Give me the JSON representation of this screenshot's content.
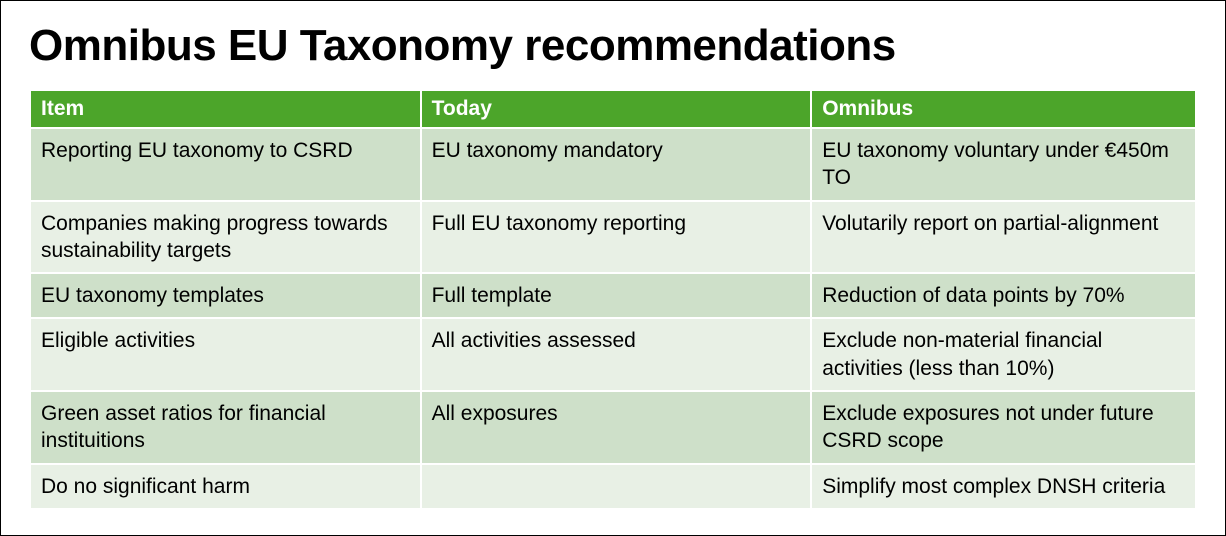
{
  "title": "Omnibus EU Taxonomy recommendations",
  "table": {
    "type": "table",
    "header_bg": "#4ca52a",
    "header_fg": "#ffffff",
    "row_odd_bg": "#cee0c9",
    "row_even_bg": "#e8f0e5",
    "text_color": "#000000",
    "font_size": 21,
    "columns": [
      {
        "key": "item",
        "label": "Item",
        "width": "33.5%"
      },
      {
        "key": "today",
        "label": "Today",
        "width": "33.5%"
      },
      {
        "key": "omnibus",
        "label": "Omnibus",
        "width": "33%"
      }
    ],
    "rows": [
      {
        "item": "Reporting EU taxonomy to CSRD",
        "today": "EU taxonomy mandatory",
        "omnibus": "EU taxonomy voluntary under €450m TO"
      },
      {
        "item": "Companies making progress towards sustainability targets",
        "today": "Full EU taxonomy reporting",
        "omnibus": "Volutarily report on partial-alignment"
      },
      {
        "item": "EU taxonomy templates",
        "today": "Full template",
        "omnibus": "Reduction of data points by 70%"
      },
      {
        "item": "Eligible activities",
        "today": "All activities assessed",
        "omnibus": "Exclude non-material financial activities (less than 10%)"
      },
      {
        "item": "Green asset ratios for financial instituitions",
        "today": "All exposures",
        "omnibus": "Exclude exposures not under future CSRD scope"
      },
      {
        "item": "Do no significant harm",
        "today": "",
        "omnibus": "Simplify most complex DNSH criteria"
      }
    ]
  }
}
